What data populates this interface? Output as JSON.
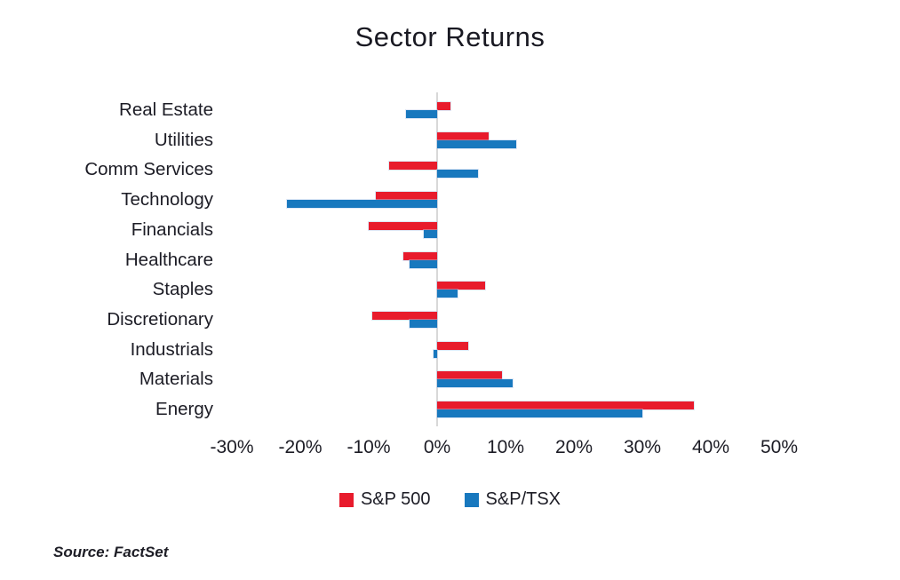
{
  "page": {
    "title": "Sector Returns",
    "source_note": "Source: FactSet"
  },
  "legend": {
    "items": [
      {
        "label": "S&P 500",
        "color": "#e81b2c"
      },
      {
        "label": "S&P/TSX",
        "color": "#1878be"
      }
    ]
  },
  "chart_data": {
    "type": "bar",
    "orientation": "horizontal",
    "title": "Sector Returns",
    "categories": [
      "Real Estate",
      "Utilities",
      "Comm Services",
      "Technology",
      "Financials",
      "Healthcare",
      "Staples",
      "Discretionary",
      "Industrials",
      "Materials",
      "Energy"
    ],
    "series": [
      {
        "name": "S&P 500",
        "color": "#e81b2c",
        "values": [
          2,
          7.5,
          -7,
          -9,
          -10,
          -5,
          7,
          -9.5,
          4.5,
          9.5,
          37.5
        ]
      },
      {
        "name": "S&P/TSX",
        "color": "#1878be",
        "values": [
          -4.5,
          11.5,
          6,
          -22,
          -2,
          -4,
          3,
          -4,
          -0.5,
          11,
          30
        ]
      }
    ],
    "value_unit": "%",
    "xlim": [
      -30,
      50
    ],
    "xticks": [
      -30,
      -20,
      -10,
      0,
      10,
      20,
      30,
      40,
      50
    ],
    "xtick_labels": [
      "-30%",
      "-20%",
      "-10%",
      "0%",
      "10%",
      "20%",
      "30%",
      "40%",
      "50%"
    ],
    "grid": false,
    "legend_position": "bottom",
    "source": "FactSet"
  }
}
